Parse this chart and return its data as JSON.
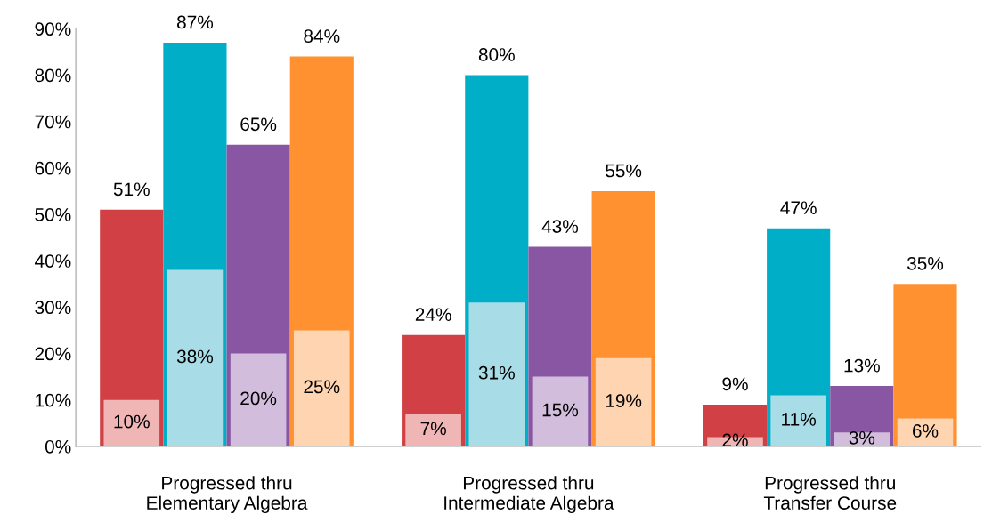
{
  "chart_data": {
    "type": "bar",
    "categories": [
      "Progressed thru\nElementary Algebra",
      "Progressed thru\nIntermediate Algebra",
      "Progressed thru\nTransfer Course"
    ],
    "series": [
      {
        "color": "#d04045",
        "values": [
          51,
          24,
          9
        ],
        "value_labels": [
          "51%",
          "24%",
          "9%"
        ]
      },
      {
        "color": "#f0b5b5",
        "values": [
          10,
          7,
          2
        ],
        "value_labels": [
          "10%",
          "7%",
          "2%"
        ]
      },
      {
        "color": "#00aec7",
        "values": [
          87,
          80,
          47
        ],
        "value_labels": [
          "87%",
          "80%",
          "47%"
        ]
      },
      {
        "color": "#a8dde8",
        "values": [
          38,
          31,
          11
        ],
        "value_labels": [
          "38%",
          "31%",
          "11%"
        ]
      },
      {
        "color": "#8856a3",
        "values": [
          65,
          43,
          13
        ],
        "value_labels": [
          "65%",
          "43%",
          "13%"
        ]
      },
      {
        "color": "#d2bedc",
        "values": [
          20,
          15,
          3
        ],
        "value_labels": [
          "20%",
          "15%",
          "3%"
        ]
      },
      {
        "color": "#ff9130",
        "values": [
          84,
          55,
          35
        ],
        "value_labels": [
          "84%",
          "55%",
          "35%"
        ]
      },
      {
        "color": "#ffd4b0",
        "values": [
          25,
          19,
          6
        ],
        "value_labels": [
          "25%",
          "19%",
          "6%"
        ]
      }
    ],
    "ylim": [
      0,
      90
    ],
    "yticks": [
      {
        "value": 0,
        "label": "0%"
      },
      {
        "value": 10,
        "label": "10%"
      },
      {
        "value": 20,
        "label": "20%"
      },
      {
        "value": 30,
        "label": "30%"
      },
      {
        "value": 40,
        "label": "40%"
      },
      {
        "value": 50,
        "label": "50%"
      },
      {
        "value": 60,
        "label": "60%"
      },
      {
        "value": 70,
        "label": "70%"
      },
      {
        "value": 80,
        "label": "80%"
      },
      {
        "value": 90,
        "label": "90%"
      }
    ],
    "grid": false,
    "legend": false
  }
}
